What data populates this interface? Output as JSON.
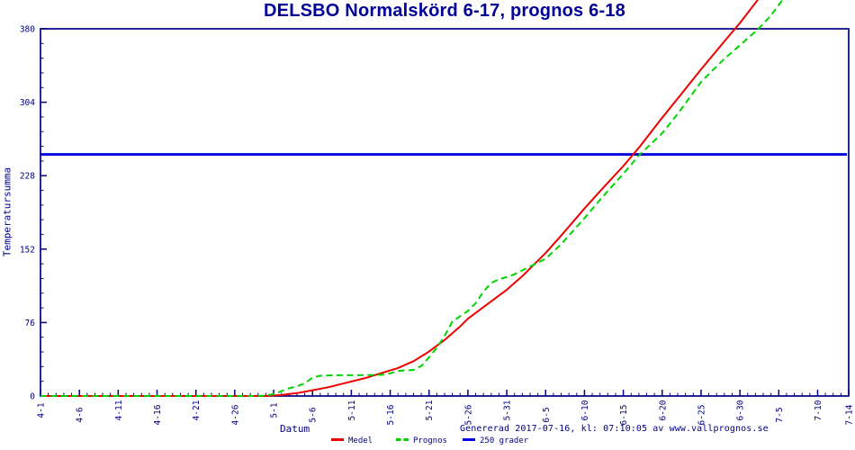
{
  "chart_data": {
    "type": "line",
    "title": "DELSBO Normalskörd 6-17, prognos 6-18",
    "xlabel": "Datum",
    "ylabel": "Temperatursumma",
    "footer": "Genererad 2017-07-16, kl: 07:10:05 av www.vallprognos.se",
    "ylim": [
      0,
      380
    ],
    "y_ticks": [
      0,
      76,
      152,
      228,
      304,
      380
    ],
    "y_minor_step": 15.2,
    "x_unit": "days since 4-1",
    "x_max_day": 104,
    "x_minor_step_days": 1,
    "grid": "off",
    "legend_position": "bottom",
    "x_ticks": [
      {
        "day": 0,
        "label": "4-1"
      },
      {
        "day": 5,
        "label": "4-6"
      },
      {
        "day": 10,
        "label": "4-11"
      },
      {
        "day": 15,
        "label": "4-16"
      },
      {
        "day": 20,
        "label": "4-21"
      },
      {
        "day": 25,
        "label": "4-26"
      },
      {
        "day": 30,
        "label": "5-1"
      },
      {
        "day": 35,
        "label": "5-6"
      },
      {
        "day": 40,
        "label": "5-11"
      },
      {
        "day": 45,
        "label": "5-16"
      },
      {
        "day": 50,
        "label": "5-21"
      },
      {
        "day": 55,
        "label": "5-26"
      },
      {
        "day": 60,
        "label": "5-31"
      },
      {
        "day": 65,
        "label": "6-5"
      },
      {
        "day": 70,
        "label": "6-10"
      },
      {
        "day": 75,
        "label": "6-15"
      },
      {
        "day": 80,
        "label": "6-20"
      },
      {
        "day": 85,
        "label": "6-25"
      },
      {
        "day": 90,
        "label": "6-30"
      },
      {
        "day": 95,
        "label": "7-5"
      },
      {
        "day": 100,
        "label": "7-10"
      },
      {
        "day": 104,
        "label": "7-14"
      }
    ],
    "reference_line": {
      "value": 250,
      "label": "250 grader",
      "color": "#0000e0"
    },
    "series": [
      {
        "name": "Medel",
        "color": "#ee0000",
        "style": "solid",
        "points": [
          [
            0,
            0
          ],
          [
            5,
            0
          ],
          [
            10,
            0
          ],
          [
            15,
            0
          ],
          [
            20,
            0
          ],
          [
            25,
            0
          ],
          [
            29,
            0
          ],
          [
            31,
            1
          ],
          [
            33,
            3
          ],
          [
            35,
            6
          ],
          [
            37,
            9
          ],
          [
            40,
            15
          ],
          [
            42,
            19
          ],
          [
            44,
            24
          ],
          [
            46,
            29
          ],
          [
            48,
            36
          ],
          [
            50,
            46
          ],
          [
            52,
            58
          ],
          [
            54,
            72
          ],
          [
            55,
            80
          ],
          [
            56,
            86
          ],
          [
            58,
            98
          ],
          [
            60,
            110
          ],
          [
            62,
            124
          ],
          [
            64,
            140
          ],
          [
            65,
            148
          ],
          [
            67,
            166
          ],
          [
            70,
            194
          ],
          [
            72,
            212
          ],
          [
            75,
            238
          ],
          [
            77,
            257
          ],
          [
            80,
            288
          ],
          [
            83,
            318
          ],
          [
            85,
            338
          ],
          [
            88,
            367
          ],
          [
            90,
            386
          ],
          [
            92.3,
            410
          ]
        ]
      },
      {
        "name": "Prognos",
        "color": "#00d400",
        "style": "dashed",
        "points": [
          [
            0,
            0
          ],
          [
            5,
            0
          ],
          [
            10,
            0
          ],
          [
            15,
            0
          ],
          [
            20,
            0
          ],
          [
            25,
            0
          ],
          [
            28,
            0
          ],
          [
            29,
            0.5
          ],
          [
            30,
            2
          ],
          [
            31,
            5
          ],
          [
            32,
            8
          ],
          [
            33,
            10
          ],
          [
            34,
            13
          ],
          [
            35,
            19
          ],
          [
            36,
            21
          ],
          [
            38,
            21.5
          ],
          [
            41,
            21.5
          ],
          [
            44,
            22
          ],
          [
            45,
            23.5
          ],
          [
            46,
            26
          ],
          [
            48,
            27
          ],
          [
            49,
            31
          ],
          [
            50,
            40
          ],
          [
            51,
            50
          ],
          [
            52,
            62
          ],
          [
            53,
            77
          ],
          [
            55,
            88
          ],
          [
            56,
            96
          ],
          [
            57,
            108
          ],
          [
            58,
            117
          ],
          [
            59,
            121
          ],
          [
            60,
            123
          ],
          [
            61,
            126
          ],
          [
            62,
            130
          ],
          [
            63,
            134
          ],
          [
            64,
            138
          ],
          [
            65,
            142
          ],
          [
            67,
            157
          ],
          [
            70,
            184
          ],
          [
            72,
            203
          ],
          [
            75,
            230
          ],
          [
            77,
            249
          ],
          [
            80,
            272
          ],
          [
            82,
            292
          ],
          [
            85,
            325
          ],
          [
            88,
            349
          ],
          [
            90,
            363
          ],
          [
            92.4,
            380
          ],
          [
            94,
            394
          ],
          [
            95.5,
            410
          ]
        ]
      }
    ],
    "legend": [
      {
        "label": "Medel",
        "color": "#ee0000",
        "style": "solid"
      },
      {
        "label": "Prognos",
        "color": "#00d400",
        "style": "dashed"
      },
      {
        "label": "250 grader",
        "color": "#0000e0",
        "style": "solid"
      }
    ]
  },
  "colors": {
    "axis": "#000080",
    "text": "#000080",
    "title": "#000099",
    "background": "#ffffff"
  }
}
